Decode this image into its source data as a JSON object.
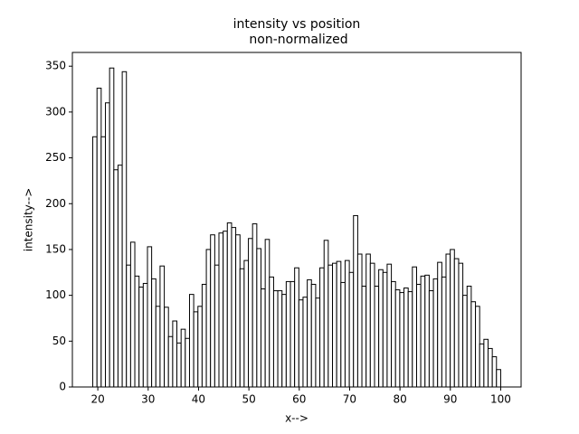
{
  "chart_data": {
    "type": "histogram",
    "title": "intensity vs position",
    "subtitle": "non-normalized",
    "xlabel": "x-->",
    "ylabel": "intensity-->",
    "bins": [
      19,
      19.84,
      20.67,
      21.51,
      22.34,
      23.18,
      24.01,
      24.85,
      25.68,
      26.52,
      27.35,
      28.19,
      29.02,
      29.86,
      30.69,
      31.53,
      32.36,
      33.2,
      34.03,
      34.87,
      35.7,
      36.54,
      37.37,
      38.21,
      39.04,
      39.88,
      40.71,
      41.55,
      42.38,
      43.22,
      44.05,
      44.89,
      45.72,
      46.56,
      47.39,
      48.23,
      49.06,
      49.9,
      50.73,
      51.57,
      52.4,
      53.24,
      54.07,
      54.91,
      55.74,
      56.58,
      57.41,
      58.25,
      59.08,
      59.92,
      60.75,
      61.59,
      62.42,
      63.26,
      64.09,
      64.93,
      65.76,
      66.6,
      67.43,
      68.27,
      69.1,
      69.94,
      70.77,
      71.61,
      72.44,
      73.28,
      74.11,
      74.95,
      75.78,
      76.62,
      77.45,
      78.29,
      79.12,
      79.96,
      80.79,
      81.63,
      82.46,
      83.3,
      84.13,
      84.97,
      85.8,
      86.64,
      87.47,
      88.31,
      89.14,
      89.98,
      90.81,
      91.65,
      92.48,
      93.32,
      94.15,
      94.99,
      95.82,
      96.66,
      97.49,
      98.33,
      99.16,
      100
    ],
    "values": [
      273,
      326,
      273,
      310,
      348,
      237,
      242,
      344,
      133,
      158,
      121,
      109,
      113,
      153,
      118,
      88,
      132,
      87,
      55,
      72,
      48,
      63,
      53,
      101,
      82,
      88,
      112,
      150,
      166,
      133,
      168,
      170,
      179,
      174,
      166,
      129,
      138,
      162,
      178,
      151,
      107,
      161,
      120,
      105,
      105,
      101,
      115,
      115,
      130,
      95,
      98,
      117,
      112,
      97,
      130,
      160,
      133,
      135,
      137,
      114,
      138,
      125,
      187,
      145,
      110,
      145,
      135,
      110,
      128,
      125,
      134,
      115,
      106,
      103,
      108,
      104,
      131,
      112,
      121,
      122,
      105,
      118,
      136,
      120,
      145,
      150,
      140,
      135,
      100,
      110,
      93,
      88,
      47,
      52,
      42,
      33,
      19
    ],
    "fill": "#ffffff",
    "edgecolor": "#000000",
    "xlim": [
      14.95,
      104.05
    ],
    "ylim": [
      0,
      365
    ],
    "xticks": [
      20,
      30,
      40,
      50,
      60,
      70,
      80,
      90,
      100
    ],
    "yticks": [
      0,
      50,
      100,
      150,
      200,
      250,
      300,
      350
    ],
    "grid": false
  }
}
